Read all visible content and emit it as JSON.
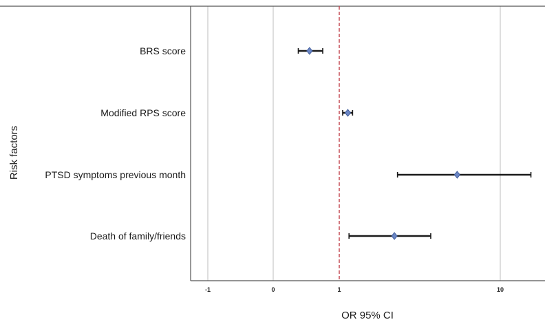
{
  "chart_data": {
    "type": "forest",
    "xlabel": "OR 95% CI",
    "ylabel": "Risk factors",
    "x_ticks": [
      "-1",
      "0",
      "1",
      "10"
    ],
    "reference_line": "1",
    "grid": "vertical",
    "colors": {
      "marker": "#6b86c4",
      "error_bar": "#1a1a1a",
      "reference": "#c2404a",
      "grid": "#bdbdbd"
    },
    "rows": [
      {
        "label": "BRS score",
        "or": 0.55,
        "ci_low": 0.38,
        "ci_high": 0.75
      },
      {
        "label": "Modified RPS score",
        "or": 1.13,
        "ci_low": 1.05,
        "ci_high": 1.21
      },
      {
        "label": "PTSD symptoms previous month",
        "or": 5.4,
        "ci_low": 2.3,
        "ci_high": 15.5
      },
      {
        "label": "Death of family/friends",
        "or": 2.2,
        "ci_low": 1.15,
        "ci_high": 3.7
      }
    ]
  }
}
